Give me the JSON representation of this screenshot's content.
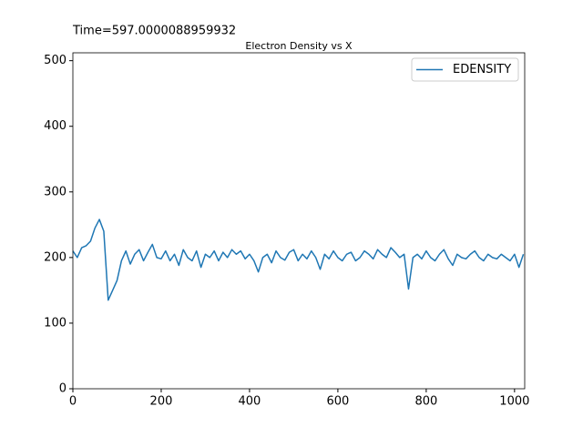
{
  "chart_data": {
    "type": "line",
    "title": "Electron Density vs X",
    "annotation": "Time=597.0000088959932",
    "x": [
      0,
      10,
      20,
      30,
      40,
      50,
      60,
      70,
      80,
      90,
      100,
      110,
      120,
      130,
      140,
      150,
      160,
      170,
      180,
      190,
      200,
      210,
      220,
      230,
      240,
      250,
      260,
      270,
      280,
      290,
      300,
      310,
      320,
      330,
      340,
      350,
      360,
      370,
      380,
      390,
      400,
      410,
      420,
      430,
      440,
      450,
      460,
      470,
      480,
      490,
      500,
      510,
      520,
      530,
      540,
      550,
      560,
      570,
      580,
      590,
      600,
      610,
      620,
      630,
      640,
      650,
      660,
      670,
      680,
      690,
      700,
      710,
      720,
      730,
      740,
      750,
      760,
      770,
      780,
      790,
      800,
      810,
      820,
      830,
      840,
      850,
      860,
      870,
      880,
      890,
      900,
      910,
      920,
      930,
      940,
      950,
      960,
      970,
      980,
      990,
      1000,
      1010,
      1020
    ],
    "series": [
      {
        "name": "EDENSITY",
        "color": "#1f77b4",
        "values": [
          210,
          200,
          215,
          218,
          225,
          245,
          258,
          240,
          135,
          150,
          165,
          195,
          210,
          190,
          205,
          212,
          195,
          208,
          220,
          200,
          198,
          210,
          195,
          205,
          188,
          212,
          200,
          195,
          210,
          185,
          205,
          200,
          210,
          195,
          208,
          200,
          212,
          205,
          210,
          198,
          205,
          195,
          178,
          200,
          205,
          192,
          210,
          200,
          196,
          208,
          212,
          195,
          205,
          198,
          210,
          200,
          182,
          205,
          198,
          210,
          200,
          195,
          205,
          208,
          195,
          200,
          210,
          205,
          198,
          212,
          205,
          200,
          215,
          208,
          200,
          205,
          152,
          200,
          205,
          198,
          210,
          200,
          195,
          205,
          212,
          198,
          188,
          205,
          200,
          198,
          205,
          210,
          200,
          195,
          205,
          200,
          198,
          205,
          200,
          195,
          205,
          185,
          205
        ]
      }
    ],
    "xlim": [
      0,
      1023
    ],
    "ylim": [
      0,
      512
    ],
    "xticks": [
      0,
      200,
      400,
      600,
      800,
      1000
    ],
    "yticks": [
      0,
      100,
      200,
      300,
      400,
      500
    ],
    "legend": "upper right"
  }
}
